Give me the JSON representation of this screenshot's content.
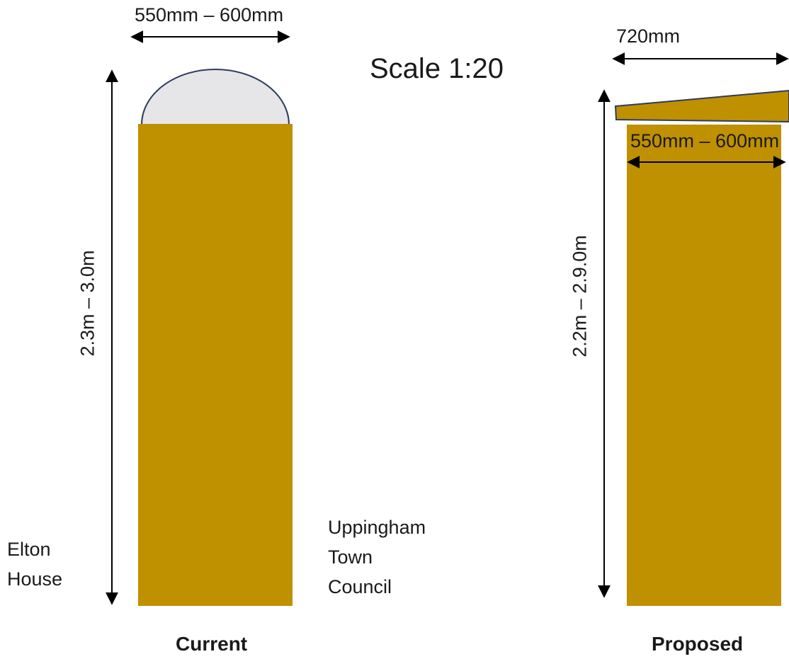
{
  "scale_label": "Scale 1:20",
  "current": {
    "width_label": "550mm – 600mm",
    "height_label": "2.3m – 3.0m",
    "caption": "Current",
    "left_note_lines": [
      "Elton",
      "House"
    ],
    "right_note_lines": [
      "Uppingham",
      "Town",
      "Council"
    ]
  },
  "proposed": {
    "cap_width_label": "720mm",
    "width_label": "550mm – 600mm",
    "height_label": "2.2m – 2.9.0m",
    "caption": "Proposed"
  },
  "colors": {
    "pier": "#bf9000",
    "dome": "#e6e6e8",
    "outline": "#2e3b5e",
    "arrow": "#000000"
  }
}
